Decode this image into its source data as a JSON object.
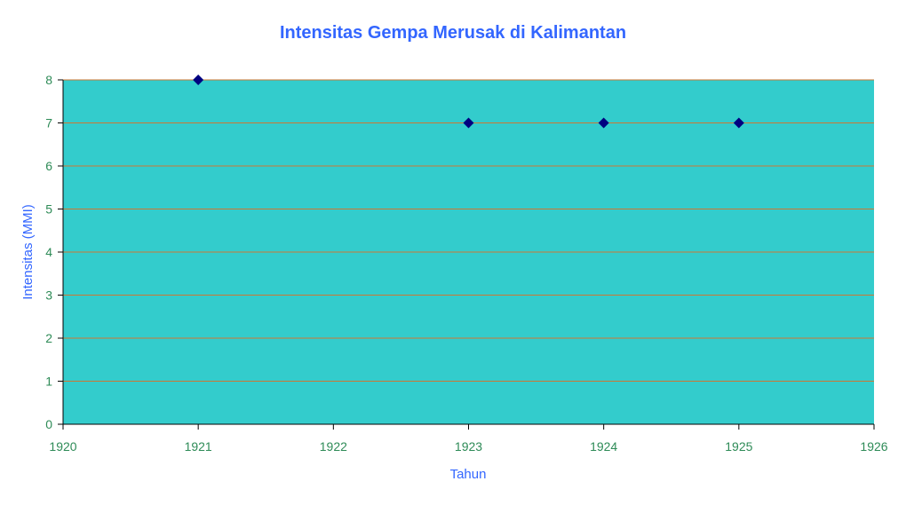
{
  "chart_data": {
    "type": "scatter",
    "title": "Intensitas Gempa Merusak di Kalimantan",
    "xlabel": "Tahun",
    "ylabel": "Intensitas (MMI)",
    "xlim": [
      1920,
      1926
    ],
    "ylim": [
      0,
      8
    ],
    "xticks": [
      "1920",
      "1921",
      "1922",
      "1923",
      "1924",
      "1925",
      "1926"
    ],
    "yticks": [
      "0",
      "1",
      "2",
      "3",
      "4",
      "5",
      "6",
      "7",
      "8"
    ],
    "grid": true,
    "legend": "none",
    "series": [
      {
        "points": [
          {
            "x": 1921,
            "y": 8
          },
          {
            "x": 1923,
            "y": 7
          },
          {
            "x": 1924,
            "y": 7
          },
          {
            "x": 1925,
            "y": 7
          }
        ]
      }
    ]
  },
  "colors": {
    "plot_background": "#33CCCC",
    "gridline": "#CC7733",
    "marker": "#000080",
    "title_text": "#3366FF",
    "tick_text": "#2E8B57",
    "axis_line": "#000000"
  }
}
